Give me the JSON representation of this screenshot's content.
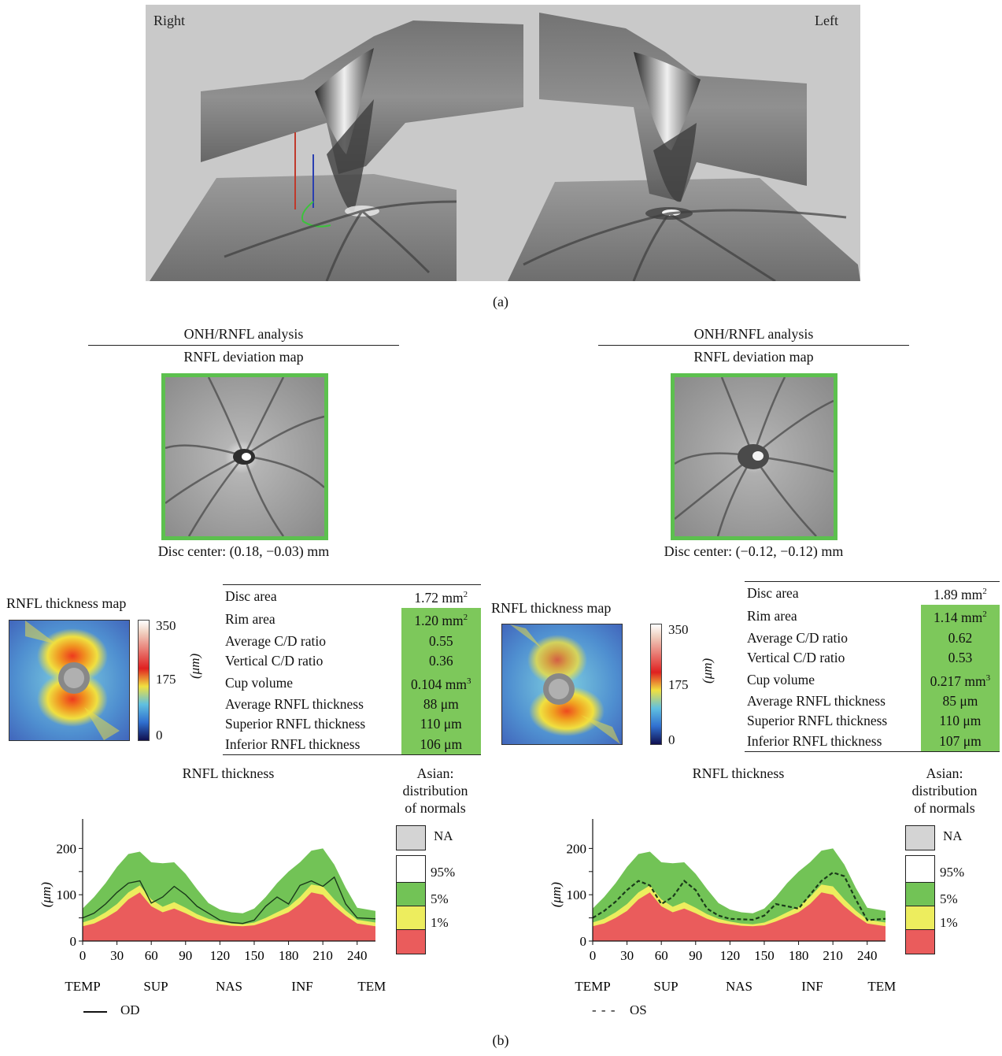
{
  "panel_a": {
    "label": "(a)",
    "right_label": "Right",
    "left_label": "Left"
  },
  "panel_b_label": "(b)",
  "eyes": [
    {
      "header": "ONH/RNFL analysis",
      "subheader": "RNFL deviation map",
      "disc_center": "Disc center: (0.18, −0.03) mm",
      "thickness_map_title": "RNFL thickness map",
      "colorbar_ticks": [
        "350",
        "175",
        "0"
      ],
      "colorbar_unit": "(μm)",
      "params": [
        {
          "label": "Disc area",
          "value": "1.72 mm",
          "sup": "2",
          "highlight": false
        },
        {
          "label": "Rim area",
          "value": "1.20 mm",
          "sup": "2",
          "highlight": true
        },
        {
          "label": "Average C/D ratio",
          "value": "0.55",
          "sup": "",
          "highlight": true
        },
        {
          "label": "Vertical C/D ratio",
          "value": "0.36",
          "sup": "",
          "highlight": true
        },
        {
          "label": "Cup volume",
          "value": "0.104 mm",
          "sup": "3",
          "highlight": true
        },
        {
          "label": "Average RNFL thickness",
          "value": "88 μm",
          "sup": "",
          "highlight": true
        },
        {
          "label": "Superior RNFL thickness",
          "value": "110 μm",
          "sup": "",
          "highlight": true
        },
        {
          "label": "Inferior RNFL thickness",
          "value": "106 μm",
          "sup": "",
          "highlight": true
        }
      ],
      "chart_title": "RNFL thickness",
      "norm_title_lines": [
        "Asian:",
        "distribution",
        "of normals"
      ],
      "series_legend": "OD",
      "series_style": "solid"
    },
    {
      "header": "ONH/RNFL analysis",
      "subheader": "RNFL deviation map",
      "disc_center": "Disc center: (−0.12, −0.12) mm",
      "thickness_map_title": "RNFL thickness map",
      "colorbar_ticks": [
        "350",
        "175",
        "0"
      ],
      "colorbar_unit": "(μm)",
      "params": [
        {
          "label": "Disc area",
          "value": "1.89 mm",
          "sup": "2",
          "highlight": false
        },
        {
          "label": "Rim area",
          "value": "1.14 mm",
          "sup": "2",
          "highlight": true
        },
        {
          "label": "Average C/D ratio",
          "value": "0.62",
          "sup": "",
          "highlight": true
        },
        {
          "label": "Vertical C/D ratio",
          "value": "0.53",
          "sup": "",
          "highlight": true
        },
        {
          "label": "Cup volume",
          "value": "0.217 mm",
          "sup": "3",
          "highlight": true
        },
        {
          "label": "Average RNFL thickness",
          "value": "85 μm",
          "sup": "",
          "highlight": true
        },
        {
          "label": "Superior RNFL thickness",
          "value": "110 μm",
          "sup": "",
          "highlight": true
        },
        {
          "label": "Inferior RNFL thickness",
          "value": "107 μm",
          "sup": "",
          "highlight": true
        }
      ],
      "chart_title": "RNFL thickness",
      "norm_title_lines": [
        "Asian:",
        "distribution",
        "of normals"
      ],
      "series_legend": "OS",
      "series_style": "dashed"
    }
  ],
  "norm_legend": [
    {
      "label": "NA",
      "color": "#d4d4d4"
    },
    {
      "label": "95%",
      "color": "#ffffff"
    },
    {
      "label": "5%",
      "color": "#72c356"
    },
    {
      "label": "1%",
      "color": "#eded5e"
    },
    {
      "label": "",
      "color": "#ea5c5c"
    }
  ],
  "colors": {
    "green": "#7dc85b",
    "band_green": "#72c356",
    "band_yellow": "#eded5e",
    "band_red": "#ea5c5c",
    "frame_green": "#5cc04e"
  },
  "chart_data": [
    {
      "type": "area",
      "ylabel": "(μm)",
      "xlim": [
        0,
        256
      ],
      "ylim": [
        0,
        250
      ],
      "x_ticks": [
        "0",
        "30",
        "60",
        "90",
        "120",
        "150",
        "180",
        "210",
        "240"
      ],
      "y_ticks": [
        "0",
        "100",
        "200"
      ],
      "regions": [
        "TEMP",
        "SUP",
        "NAS",
        "INF",
        "TEMP"
      ],
      "x": [
        0,
        10,
        20,
        30,
        40,
        50,
        60,
        70,
        80,
        90,
        100,
        110,
        120,
        130,
        140,
        150,
        160,
        170,
        180,
        190,
        200,
        210,
        220,
        230,
        240,
        256
      ],
      "bands": [
        {
          "name": "1%",
          "values": [
            32,
            38,
            50,
            65,
            90,
            105,
            75,
            62,
            70,
            60,
            48,
            40,
            36,
            33,
            32,
            34,
            42,
            52,
            62,
            80,
            105,
            100,
            75,
            55,
            38,
            32
          ]
        },
        {
          "name": "5%",
          "values": [
            40,
            48,
            62,
            80,
            105,
            120,
            90,
            74,
            84,
            72,
            58,
            48,
            42,
            38,
            36,
            40,
            50,
            62,
            74,
            95,
            122,
            118,
            90,
            66,
            46,
            40
          ]
        },
        {
          "name": "95%",
          "values": [
            70,
            95,
            125,
            160,
            188,
            193,
            170,
            168,
            170,
            145,
            112,
            82,
            68,
            62,
            60,
            70,
            95,
            125,
            150,
            170,
            195,
            200,
            165,
            115,
            72,
            65
          ]
        }
      ],
      "series": [
        {
          "name": "OD",
          "values": [
            50,
            60,
            80,
            105,
            125,
            130,
            82,
            95,
            118,
            100,
            75,
            60,
            45,
            40,
            38,
            45,
            75,
            95,
            80,
            120,
            130,
            118,
            138,
            80,
            50,
            48
          ]
        }
      ]
    },
    {
      "type": "area",
      "ylabel": "(μm)",
      "xlim": [
        0,
        256
      ],
      "ylim": [
        0,
        250
      ],
      "x_ticks": [
        "0",
        "30",
        "60",
        "90",
        "120",
        "150",
        "180",
        "210",
        "240"
      ],
      "y_ticks": [
        "0",
        "100",
        "200"
      ],
      "regions": [
        "TEMP",
        "SUP",
        "NAS",
        "INF",
        "TEMP"
      ],
      "x": [
        0,
        10,
        20,
        30,
        40,
        50,
        60,
        70,
        80,
        90,
        100,
        110,
        120,
        130,
        140,
        150,
        160,
        170,
        180,
        190,
        200,
        210,
        220,
        230,
        240,
        256
      ],
      "bands": [
        {
          "name": "1%",
          "values": [
            32,
            38,
            50,
            65,
            90,
            105,
            75,
            62,
            70,
            60,
            48,
            40,
            36,
            33,
            32,
            34,
            42,
            52,
            62,
            80,
            105,
            100,
            75,
            55,
            38,
            32
          ]
        },
        {
          "name": "5%",
          "values": [
            40,
            48,
            62,
            80,
            105,
            120,
            90,
            74,
            84,
            72,
            58,
            48,
            42,
            38,
            36,
            40,
            50,
            62,
            74,
            95,
            122,
            118,
            90,
            66,
            46,
            40
          ]
        },
        {
          "name": "95%",
          "values": [
            70,
            95,
            125,
            160,
            188,
            193,
            170,
            168,
            170,
            145,
            112,
            82,
            68,
            62,
            60,
            70,
            95,
            125,
            150,
            170,
            195,
            200,
            165,
            115,
            72,
            65
          ]
        }
      ],
      "series": [
        {
          "name": "OS",
          "values": [
            50,
            65,
            85,
            110,
            130,
            120,
            80,
            95,
            130,
            110,
            70,
            55,
            48,
            47,
            46,
            55,
            80,
            75,
            70,
            100,
            130,
            148,
            140,
            90,
            45,
            48
          ]
        }
      ]
    }
  ]
}
